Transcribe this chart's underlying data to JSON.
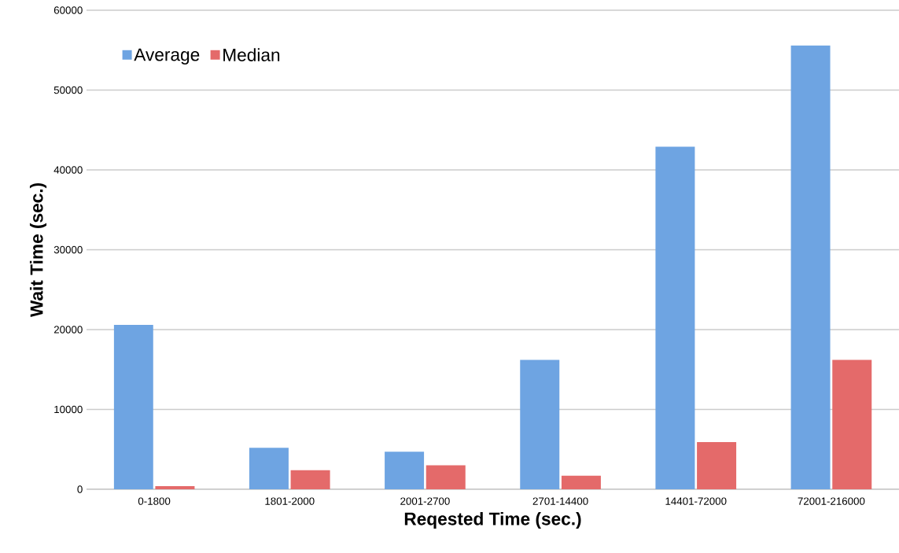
{
  "chart_data": {
    "type": "bar",
    "xlabel": "Reqested Time (sec.)",
    "ylabel": "Wait Time (sec.)",
    "categories": [
      "0-1800",
      "1801-2000",
      "2001-2700",
      "2701-14400",
      "14401-72000",
      "72001-216000"
    ],
    "series": [
      {
        "name": "Average",
        "color": "#6ea4e2",
        "values": [
          20600,
          5200,
          4700,
          16200,
          42900,
          55600
        ]
      },
      {
        "name": "Median",
        "color": "#e46a6a",
        "values": [
          400,
          2400,
          3000,
          1700,
          5900,
          16200
        ]
      }
    ],
    "ylim": [
      0,
      60000
    ],
    "yticks": [
      0,
      10000,
      20000,
      30000,
      40000,
      50000,
      60000
    ],
    "grid": "y",
    "legend": "top left"
  }
}
